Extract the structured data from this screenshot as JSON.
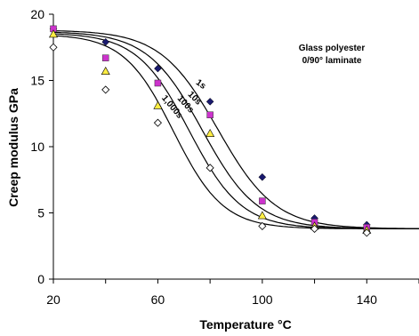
{
  "chart_data": {
    "type": "scatter",
    "title": "",
    "annotation": [
      "Glass polyester",
      "0/90° laminate"
    ],
    "xlabel": "Temperature   °C",
    "ylabel": "Creep modulus  GPa",
    "xlim": [
      20,
      160
    ],
    "ylim": [
      0,
      20
    ],
    "xticks": [
      20,
      60,
      100,
      140
    ],
    "yticks": [
      0,
      5,
      10,
      15,
      20
    ],
    "grid": false,
    "legend": "none",
    "series": [
      {
        "name": "1s",
        "marker": "filled-diamond",
        "color": "#1a1a6e",
        "x": [
          20,
          40,
          60,
          80,
          100,
          120,
          140
        ],
        "y": [
          18.9,
          17.9,
          15.9,
          13.4,
          7.7,
          4.6,
          4.1
        ],
        "curve": {
          "upper": 18.8,
          "lower": 3.8,
          "mid": 83,
          "width": 11
        }
      },
      {
        "name": "10s",
        "marker": "filled-square",
        "color": "#cc33cc",
        "x": [
          20,
          40,
          60,
          80,
          100,
          120,
          140
        ],
        "y": [
          18.9,
          16.7,
          14.8,
          12.4,
          5.9,
          4.3,
          3.9
        ],
        "curve": {
          "upper": 18.7,
          "lower": 3.8,
          "mid": 77,
          "width": 10.5
        }
      },
      {
        "name": "100s",
        "marker": "filled-triangle",
        "color": "#ffee44",
        "x": [
          20,
          40,
          60,
          80,
          100,
          120,
          140
        ],
        "y": [
          18.5,
          15.7,
          13.1,
          11.0,
          4.8,
          4.0,
          3.7
        ],
        "curve": {
          "upper": 18.6,
          "lower": 3.8,
          "mid": 72,
          "width": 10
        }
      },
      {
        "name": "1,000s",
        "marker": "open-diamond",
        "color": "#000000",
        "x": [
          20,
          40,
          60,
          80,
          100,
          120,
          140
        ],
        "y": [
          17.5,
          14.3,
          11.8,
          8.4,
          4.0,
          3.8,
          3.5
        ],
        "curve": {
          "upper": 18.5,
          "lower": 3.8,
          "mid": 66,
          "width": 9.5
        }
      }
    ]
  }
}
